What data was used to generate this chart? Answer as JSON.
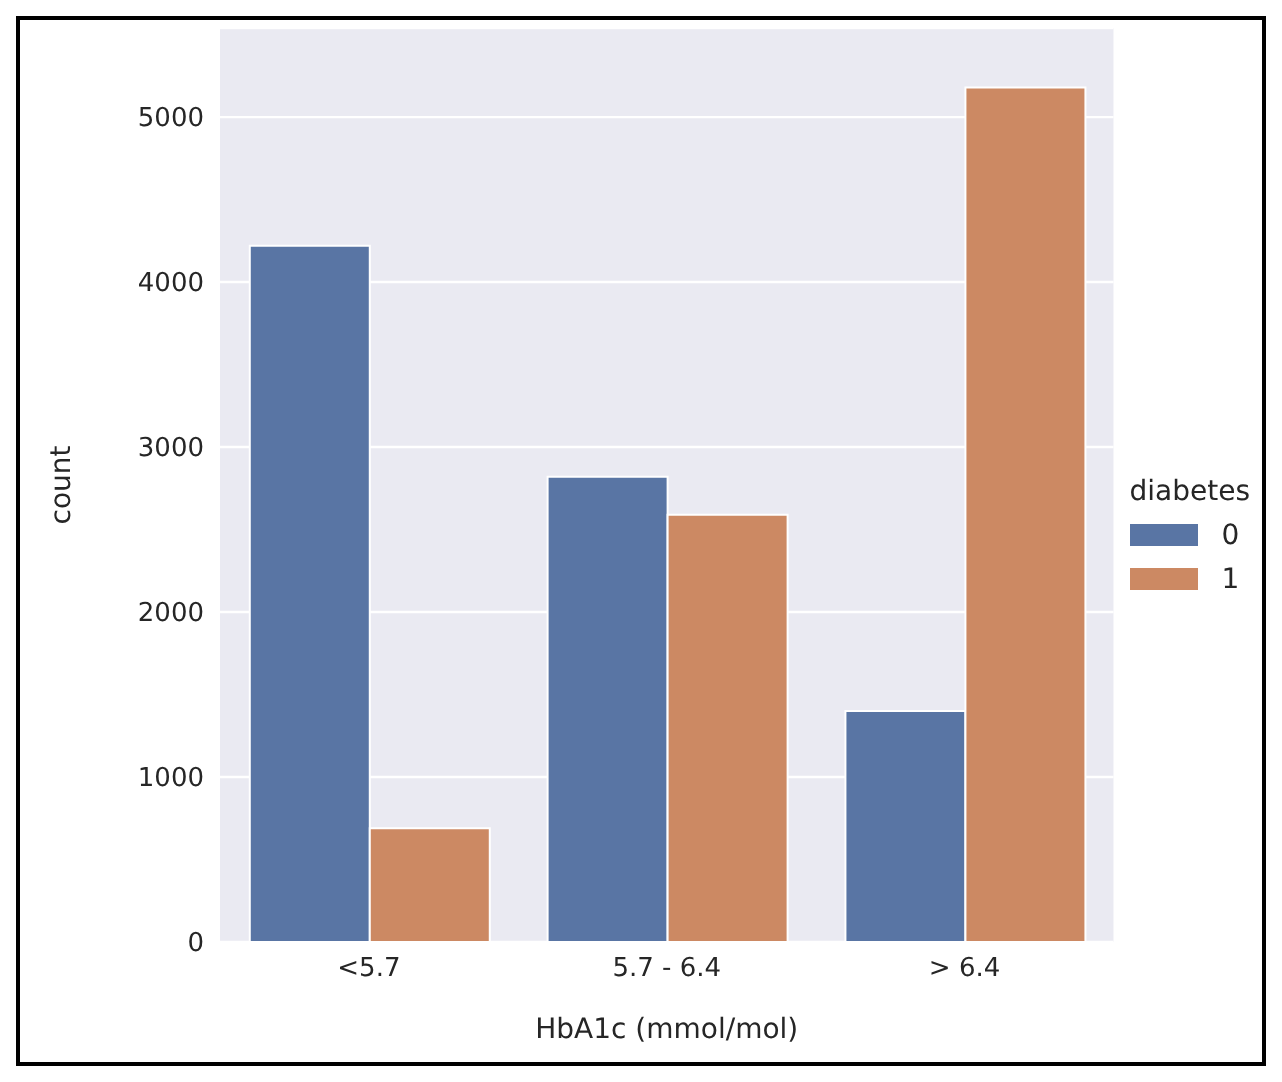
{
  "chart_data": {
    "type": "bar",
    "xlabel": "HbA1c (mmol/mol)",
    "ylabel": "count",
    "legend_title": "diabetes",
    "categories": [
      "<5.7",
      "5.7 - 6.4",
      "> 6.4"
    ],
    "series": [
      {
        "name": "0",
        "color": "#5975a4",
        "values": [
          4220,
          2820,
          1400
        ]
      },
      {
        "name": "1",
        "color": "#cc8963",
        "values": [
          690,
          2590,
          5180
        ]
      }
    ],
    "ylim": [
      0,
      5540
    ],
    "yticks": [
      0,
      1000,
      2000,
      3000,
      4000,
      5000
    ],
    "grid": "y",
    "legend": "right"
  }
}
